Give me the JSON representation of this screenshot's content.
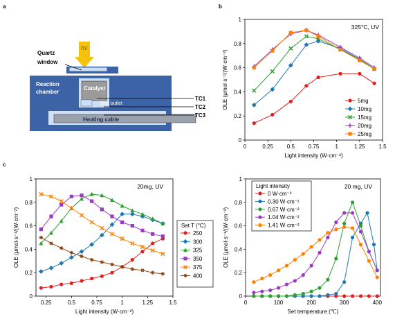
{
  "panel_labels": {
    "a": "a",
    "b": "b",
    "c": "c"
  },
  "schematic": {
    "hv_label": "hν",
    "quartz_window_label": [
      "Quartz",
      "window"
    ],
    "reaction_chamber_label": [
      "Reaction",
      "chamber"
    ],
    "catalyst_label": "Catalyst",
    "gas_outlet_label": "Gas outlet",
    "heating_cable_label": "Heating cable",
    "tc_labels": [
      "TC1",
      "TC2",
      "TC3"
    ],
    "colors": {
      "chamber": "#3c63a6",
      "chamber_light": "#cfe0f4",
      "catalyst": "#9b9b9b",
      "light": "#f4c20d"
    }
  },
  "chart_data": [
    {
      "id": "b",
      "type": "line",
      "annotation": "325°C, UV",
      "xlabel": "Light intensity (W·cm⁻²)",
      "ylabel": "OLE (μmol·s⁻¹/(W·cm⁻²)",
      "xlim": [
        0,
        1.5
      ],
      "ylim": [
        0,
        1.0
      ],
      "xticks": [
        "0",
        "0.25",
        "0.5",
        "0.75",
        "1",
        "1.25",
        "1.5"
      ],
      "yticks": [
        "0",
        "0.2",
        "0.4",
        "0.6",
        "0.8",
        "1"
      ],
      "legend_position": "bottom-right",
      "x": [
        0.1,
        0.3,
        0.5,
        0.67,
        0.8,
        1.04,
        1.25,
        1.41
      ],
      "series": [
        {
          "name": "5mg",
          "color": "#e02020",
          "marker": "circle",
          "values": [
            0.14,
            0.21,
            0.32,
            0.45,
            0.52,
            0.55,
            0.55,
            0.47
          ]
        },
        {
          "name": "10mg",
          "color": "#1f77b4",
          "marker": "diamond",
          "values": [
            0.29,
            0.42,
            0.62,
            0.79,
            0.82,
            0.76,
            0.67,
            0.59
          ]
        },
        {
          "name": "15mg",
          "color": "#2ca02c",
          "marker": "x",
          "values": [
            0.41,
            0.57,
            0.76,
            0.86,
            0.84,
            0.75,
            0.67,
            0.59
          ]
        },
        {
          "name": "20mg",
          "color": "#9b39c4",
          "marker": "plus",
          "values": [
            0.61,
            0.75,
            0.88,
            0.91,
            0.87,
            0.77,
            0.68,
            0.6
          ]
        },
        {
          "name": "25mg",
          "color": "#ff8000",
          "marker": "square",
          "values": [
            0.6,
            0.74,
            0.89,
            0.91,
            0.86,
            0.75,
            0.66,
            0.59
          ]
        }
      ]
    },
    {
      "id": "c-left",
      "type": "line",
      "annotation": "20mg, UV",
      "xlabel": "Light intensity (W·cm⁻²)",
      "ylabel": "OLE (μmol·s⁻¹/(W·cm⁻²)",
      "xlim": [
        0.15,
        1.5
      ],
      "ylim": [
        0,
        1.0
      ],
      "xticks": [
        "0.25",
        "0.5",
        "0.75",
        "1",
        "1.25",
        "1.5"
      ],
      "yticks": [
        "0",
        "0.2",
        "0.4",
        "0.6",
        "0.8",
        "1"
      ],
      "legend_title": "Set T (°C)",
      "legend_position": "outside-right",
      "x": [
        0.2,
        0.3,
        0.4,
        0.5,
        0.6,
        0.7,
        0.8,
        0.9,
        1.0,
        1.1,
        1.2,
        1.3,
        1.4
      ],
      "series": [
        {
          "name": "250",
          "color": "#e02020",
          "marker": "circle",
          "values": [
            0.07,
            0.08,
            0.1,
            0.11,
            0.13,
            0.15,
            0.17,
            0.2,
            0.25,
            0.31,
            0.38,
            0.45,
            0.49
          ]
        },
        {
          "name": "300",
          "color": "#1f77b4",
          "marker": "diamond",
          "values": [
            0.21,
            0.24,
            0.28,
            0.33,
            0.38,
            0.44,
            0.52,
            0.61,
            0.7,
            0.7,
            0.68,
            0.65,
            0.62
          ]
        },
        {
          "name": "325",
          "color": "#2ca02c",
          "marker": "triangle",
          "values": [
            0.45,
            0.54,
            0.64,
            0.75,
            0.83,
            0.87,
            0.86,
            0.82,
            0.77,
            0.73,
            0.7,
            0.66,
            0.62
          ]
        },
        {
          "name": "350",
          "color": "#9b39c4",
          "marker": "square",
          "values": [
            0.57,
            0.68,
            0.78,
            0.85,
            0.86,
            0.81,
            0.74,
            0.68,
            0.63,
            0.6,
            0.56,
            0.53,
            0.51
          ]
        },
        {
          "name": "375",
          "color": "#ff8000",
          "marker": "x",
          "values": [
            0.87,
            0.85,
            0.81,
            0.75,
            0.69,
            0.63,
            0.58,
            0.53,
            0.49,
            0.45,
            0.42,
            0.39,
            0.36
          ]
        },
        {
          "name": "400",
          "color": "#8b4513",
          "marker": "star",
          "values": [
            0.5,
            0.45,
            0.41,
            0.37,
            0.34,
            0.31,
            0.29,
            0.27,
            0.25,
            0.23,
            0.22,
            0.2,
            0.19
          ]
        }
      ]
    },
    {
      "id": "c-right",
      "type": "line",
      "annotation": "20 mg, UV",
      "xlabel": "Set temperature (℃)",
      "ylabel": "OLE (μmol·s⁻¹/(W·cm⁻²)",
      "xlim": [
        0,
        410
      ],
      "ylim": [
        0,
        1.0
      ],
      "xticks": [
        "0",
        "100",
        "200",
        "300",
        "400"
      ],
      "yticks": [
        "0",
        "0.2",
        "0.4",
        "0.6",
        "0.8",
        "1"
      ],
      "legend_title": "Light intensity",
      "legend_position": "top-left",
      "x": [
        25,
        50,
        75,
        100,
        125,
        150,
        175,
        200,
        225,
        250,
        275,
        300,
        325,
        350,
        375,
        400
      ],
      "series": [
        {
          "name": "0 W·cm⁻²",
          "color": "#e02020",
          "marker": "circle",
          "x": [
            25,
            50,
            75,
            100,
            125,
            150,
            175,
            200,
            225,
            250,
            275,
            300,
            325,
            350,
            375,
            400
          ],
          "values": [
            0,
            0,
            0,
            0,
            0,
            0,
            0,
            0,
            0,
            0,
            0,
            0,
            0,
            0,
            0,
            0
          ]
        },
        {
          "name": "0.30 W·cm⁻²",
          "color": "#1f77b4",
          "marker": "circle",
          "x": [
            25,
            50,
            75,
            100,
            125,
            150,
            175,
            200,
            225,
            250,
            275,
            300,
            325,
            350,
            370,
            390,
            400
          ],
          "values": [
            0,
            0,
            0,
            0,
            0,
            0,
            0,
            0,
            0,
            0.01,
            0.02,
            0.12,
            0.5,
            0.62,
            0.71,
            0.44,
            0.22
          ]
        },
        {
          "name": "0.67 W·cm⁻²",
          "color": "#2ca02c",
          "marker": "circle",
          "x": [
            25,
            50,
            75,
            100,
            125,
            150,
            175,
            200,
            225,
            250,
            275,
            300,
            325,
            350,
            375,
            400
          ],
          "values": [
            0,
            0,
            0,
            0,
            0,
            0.01,
            0.02,
            0.04,
            0.07,
            0.14,
            0.32,
            0.62,
            0.8,
            0.6,
            0.38,
            0.22
          ]
        },
        {
          "name": "1.04 W·cm⁻²",
          "color": "#9b39c4",
          "marker": "circle",
          "x": [
            25,
            50,
            75,
            100,
            125,
            150,
            175,
            200,
            225,
            250,
            275,
            300,
            325,
            350,
            375,
            400
          ],
          "values": [
            0.03,
            0.04,
            0.05,
            0.07,
            0.1,
            0.13,
            0.18,
            0.26,
            0.37,
            0.5,
            0.63,
            0.71,
            0.71,
            0.55,
            0.38,
            0.22
          ]
        },
        {
          "name": "1.41 W·cm⁻²",
          "color": "#ff8000",
          "marker": "circle",
          "x": [
            25,
            50,
            75,
            100,
            125,
            150,
            175,
            200,
            225,
            250,
            275,
            300,
            325,
            350,
            375,
            400
          ],
          "values": [
            0.12,
            0.15,
            0.18,
            0.22,
            0.26,
            0.31,
            0.36,
            0.42,
            0.48,
            0.54,
            0.57,
            0.59,
            0.58,
            0.44,
            0.3,
            0.16
          ]
        }
      ]
    }
  ]
}
